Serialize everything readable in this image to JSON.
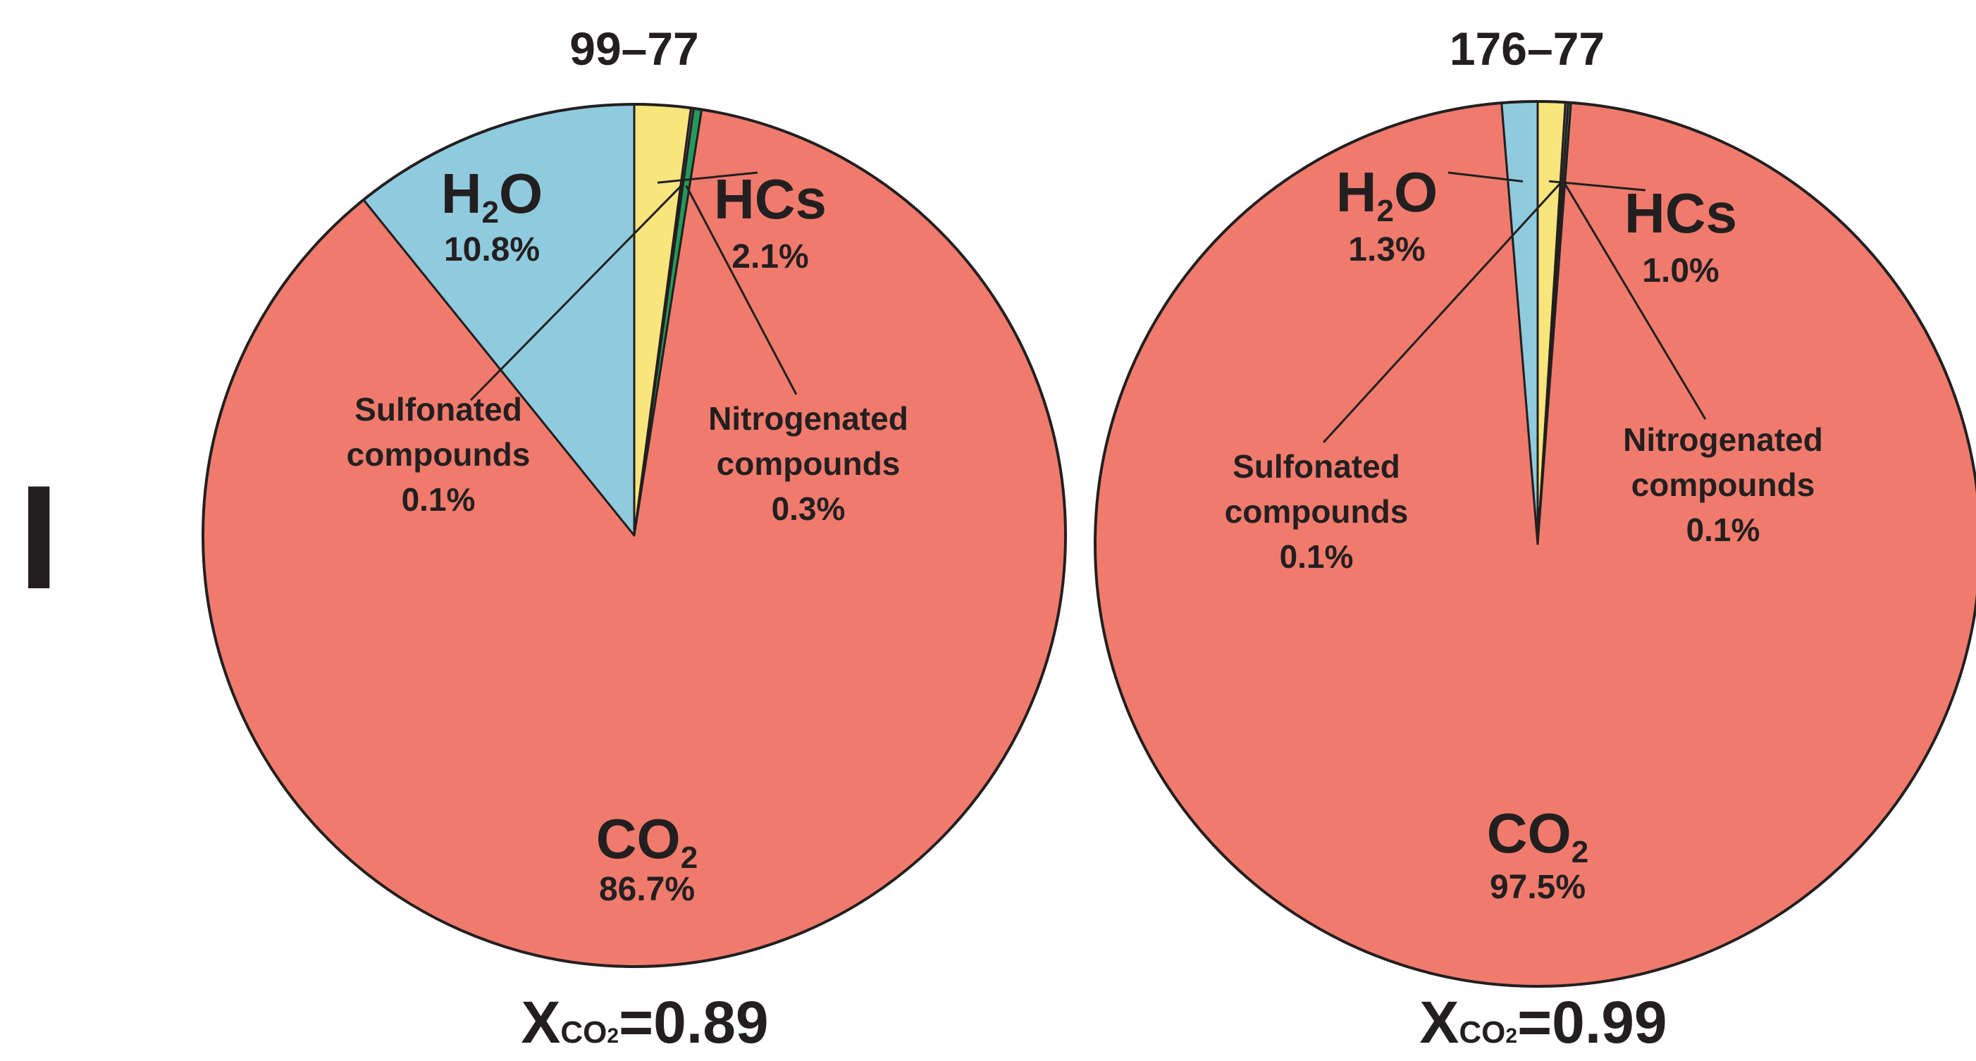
{
  "panel_label": "I",
  "colors": {
    "co2": "#f07b6d",
    "h2o": "#8fcbde",
    "hcs": "#f8e57c",
    "sulfonated": "#9b6aa6",
    "nitrogenated": "#229a5b",
    "outline": "#231f20"
  },
  "chart_data": [
    {
      "type": "pie",
      "title": "99–77",
      "slices": [
        {
          "name": "CO2",
          "value": 86.7,
          "label_main": "CO",
          "label_sub": "2",
          "label_pct": "86.7%"
        },
        {
          "name": "H2O",
          "value": 10.8,
          "label_main": "H",
          "label_sub": "2",
          "label_tail": "O",
          "label_pct": "10.8%"
        },
        {
          "name": "HCs",
          "value": 2.1,
          "label_main": "HCs",
          "label_pct": "2.1%"
        },
        {
          "name": "Sulfonated compounds",
          "value": 0.1,
          "label_line1": "Sulfonated",
          "label_line2": "compounds",
          "label_pct": "0.1%"
        },
        {
          "name": "Nitrogenated compounds",
          "value": 0.3,
          "label_line1": "Nitrogenated",
          "label_line2": "compounds",
          "label_pct": "0.3%"
        }
      ],
      "xco2": {
        "prefix": "X",
        "sub": "CO",
        "sub2": "2",
        "value": "=0.89"
      }
    },
    {
      "type": "pie",
      "title": "176–77",
      "slices": [
        {
          "name": "CO2",
          "value": 97.5,
          "label_main": "CO",
          "label_sub": "2",
          "label_pct": "97.5%"
        },
        {
          "name": "H2O",
          "value": 1.3,
          "label_main": "H",
          "label_sub": "2",
          "label_tail": "O",
          "label_pct": "1.3%"
        },
        {
          "name": "HCs",
          "value": 1.0,
          "label_main": "HCs",
          "label_pct": "1.0%"
        },
        {
          "name": "Sulfonated compounds",
          "value": 0.1,
          "label_line1": "Sulfonated",
          "label_line2": "compounds",
          "label_pct": "0.1%"
        },
        {
          "name": "Nitrogenated compounds",
          "value": 0.1,
          "label_line1": "Nitrogenated",
          "label_line2": "compounds",
          "label_pct": "0.1%"
        }
      ],
      "xco2": {
        "prefix": "X",
        "sub": "CO",
        "sub2": "2",
        "value": "=0.99"
      }
    }
  ]
}
